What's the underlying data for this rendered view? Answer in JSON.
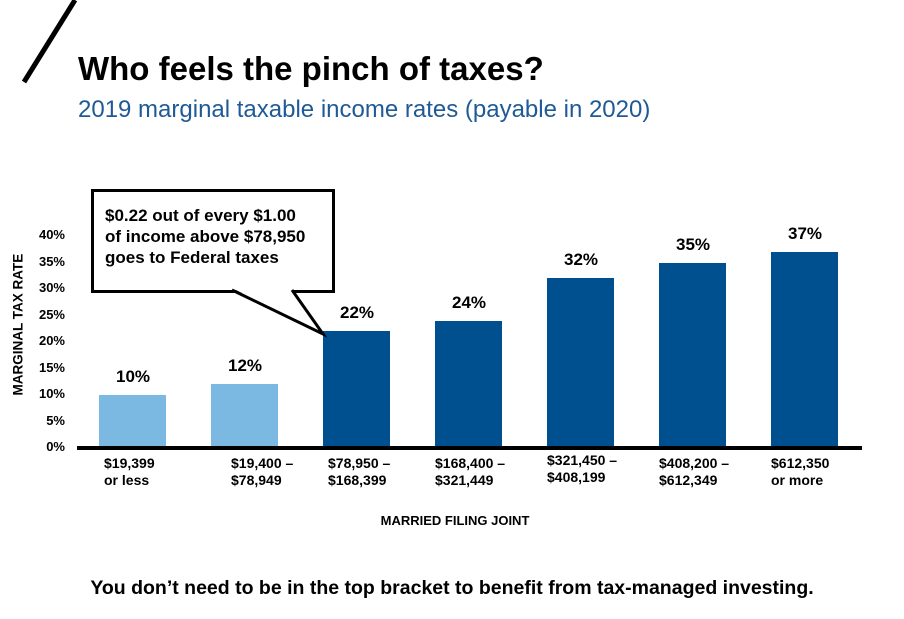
{
  "header": {
    "title": "Who feels the pinch of taxes?",
    "subtitle": "2019 marginal taxable income rates (payable in 2020)"
  },
  "callout": {
    "lines": [
      "$0.22 out of every $1.00",
      "of income above $78,950",
      "goes to Federal taxes"
    ]
  },
  "footer": "You don’t need to be in the top bracket to benefit from tax-managed investing.",
  "colors": {
    "light_bar": "#7bb9e2",
    "dark_bar": "#005090",
    "subtitle": "#1f5a96"
  },
  "chart_data": {
    "type": "bar",
    "title": "Who feels the pinch of taxes?",
    "xlabel": "MARRIED FILING JOINT",
    "ylabel": "MARGINAL  TAX RATE",
    "ylim": [
      0,
      40
    ],
    "yticks": [
      "0%",
      "5%",
      "10%",
      "15%",
      "20%",
      "25%",
      "30%",
      "35%",
      "40%"
    ],
    "grid": false,
    "categories": [
      "$19,399\nor less",
      "$19,400 –\n$78,949",
      "$78,950 –\n$168,399",
      "$168,400 –\n$321,449",
      "$321,450 –\n$408,199",
      "$408,200 –\n$612,349",
      "$612,350\nor more"
    ],
    "values": [
      10,
      12,
      22,
      24,
      32,
      35,
      37
    ],
    "data_labels": [
      "10%",
      "12%",
      "22%",
      "24%",
      "32%",
      "35%",
      "37%"
    ],
    "highlight": [
      "light",
      "light",
      "dark",
      "dark",
      "dark",
      "dark",
      "dark"
    ]
  }
}
